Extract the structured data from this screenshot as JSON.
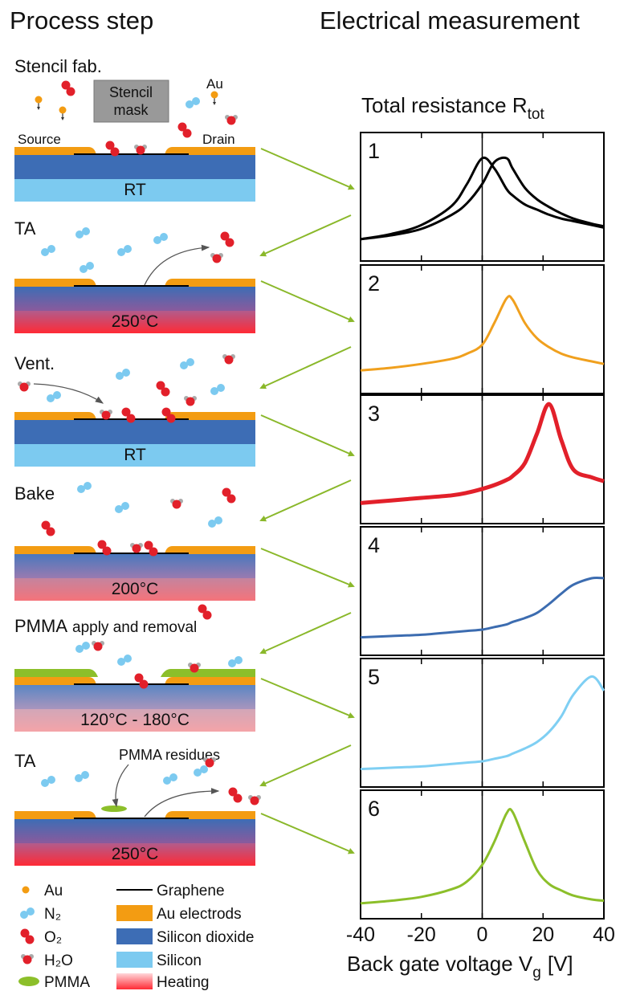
{
  "headings": [
    "Process step",
    "Electrical measurement"
  ],
  "steps": [
    {
      "title": "Stencil fab.",
      "temperature": "RT",
      "annotations": [
        "Stencil",
        "mask",
        "Au",
        "Source",
        "Drain"
      ]
    },
    {
      "title": "TA",
      "temperature": "250°C"
    },
    {
      "title": "Vent.",
      "temperature": "RT"
    },
    {
      "title": "Bake",
      "temperature": "200°C"
    },
    {
      "title": "PMMA",
      "subtitle": "apply and removal",
      "temperature": "120°C - 180°C"
    },
    {
      "title": "TA",
      "temperature": "250°C",
      "annotations": [
        "PMMA residues"
      ]
    }
  ],
  "legend_left": [
    "Au",
    "N₂",
    "O₂",
    "H₂O",
    "PMMA"
  ],
  "legend_right": [
    "Graphene",
    "Au electrods",
    "Silicon dioxide",
    "Silicon",
    "Heating"
  ],
  "chart_data": [
    {
      "type": "line",
      "label": "1",
      "title": "Total resistance R",
      "title_sub": "tot",
      "x": [
        -40,
        -30,
        -20,
        -10,
        -5,
        0,
        4,
        8,
        10,
        14,
        18,
        22,
        26,
        30,
        36,
        40
      ],
      "xlim": [
        -40,
        40
      ],
      "ylim": [
        0,
        1
      ],
      "xticks": [
        -40,
        -20,
        0,
        20,
        40
      ],
      "series": [
        {
          "color": "#000000",
          "values": [
            0.17,
            0.21,
            0.28,
            0.43,
            0.6,
            0.8,
            0.72,
            0.56,
            0.51,
            0.44,
            0.4,
            0.36,
            0.33,
            0.31,
            0.28,
            0.26
          ]
        },
        {
          "color": "#000000",
          "values": [
            0.17,
            0.2,
            0.25,
            0.36,
            0.45,
            0.6,
            0.77,
            0.8,
            0.72,
            0.57,
            0.48,
            0.42,
            0.37,
            0.33,
            0.29,
            0.27
          ]
        }
      ]
    },
    {
      "type": "line",
      "label": "2",
      "x": [
        -40,
        -30,
        -20,
        -10,
        -5,
        0,
        4,
        8,
        10,
        14,
        18,
        22,
        26,
        30,
        36,
        40
      ],
      "xlim": [
        -40,
        40
      ],
      "ylim": [
        0,
        1
      ],
      "xticks": [
        -40,
        -20,
        0,
        20,
        40
      ],
      "series": [
        {
          "color": "#f0a01e",
          "values": [
            0.18,
            0.2,
            0.23,
            0.27,
            0.31,
            0.38,
            0.55,
            0.74,
            0.73,
            0.55,
            0.43,
            0.36,
            0.31,
            0.28,
            0.25,
            0.23
          ]
        }
      ]
    },
    {
      "type": "line",
      "label": "3",
      "x": [
        -40,
        -30,
        -20,
        -10,
        -5,
        0,
        4,
        8,
        10,
        14,
        18,
        22,
        26,
        30,
        36,
        40
      ],
      "xlim": [
        -40,
        40
      ],
      "ylim": [
        0,
        1
      ],
      "xticks": [
        -40,
        -20,
        0,
        20,
        40
      ],
      "series": [
        {
          "color": "#e2202a",
          "values": [
            0.16,
            0.18,
            0.2,
            0.22,
            0.24,
            0.27,
            0.3,
            0.34,
            0.37,
            0.47,
            0.7,
            0.93,
            0.65,
            0.42,
            0.36,
            0.33
          ]
        }
      ]
    },
    {
      "type": "line",
      "label": "4",
      "x": [
        -40,
        -30,
        -20,
        -10,
        -5,
        0,
        4,
        8,
        10,
        14,
        18,
        22,
        26,
        30,
        36,
        40
      ],
      "xlim": [
        -40,
        40
      ],
      "ylim": [
        0,
        1
      ],
      "xticks": [
        -40,
        -20,
        0,
        20,
        40
      ],
      "series": [
        {
          "color": "#3c6cb0",
          "values": [
            0.14,
            0.15,
            0.16,
            0.18,
            0.19,
            0.2,
            0.22,
            0.24,
            0.26,
            0.29,
            0.33,
            0.4,
            0.48,
            0.55,
            0.6,
            0.6
          ]
        }
      ]
    },
    {
      "type": "line",
      "label": "5",
      "x": [
        -40,
        -30,
        -20,
        -10,
        -5,
        0,
        4,
        8,
        10,
        14,
        18,
        22,
        26,
        30,
        36,
        40
      ],
      "xlim": [
        -40,
        40
      ],
      "ylim": [
        0,
        1
      ],
      "xticks": [
        -40,
        -20,
        0,
        20,
        40
      ],
      "series": [
        {
          "color": "#7fcff3",
          "values": [
            0.14,
            0.15,
            0.16,
            0.18,
            0.19,
            0.2,
            0.22,
            0.24,
            0.26,
            0.3,
            0.35,
            0.43,
            0.55,
            0.72,
            0.86,
            0.75
          ]
        }
      ]
    },
    {
      "type": "line",
      "label": "6",
      "x": [
        -40,
        -30,
        -20,
        -10,
        -5,
        0,
        4,
        8,
        10,
        14,
        18,
        22,
        26,
        30,
        36,
        40
      ],
      "xlim": [
        -40,
        40
      ],
      "ylim": [
        0,
        1
      ],
      "xticks": [
        -40,
        -20,
        0,
        20,
        40
      ],
      "xtick_labels": true,
      "xlabel": "Back gate voltage V",
      "xlabel_sub": "g",
      "xlabel_unit": "[V]",
      "series": [
        {
          "color": "#8cbf2a",
          "values": [
            0.12,
            0.14,
            0.17,
            0.23,
            0.29,
            0.42,
            0.6,
            0.82,
            0.83,
            0.6,
            0.38,
            0.27,
            0.22,
            0.18,
            0.15,
            0.14
          ]
        }
      ]
    }
  ]
}
